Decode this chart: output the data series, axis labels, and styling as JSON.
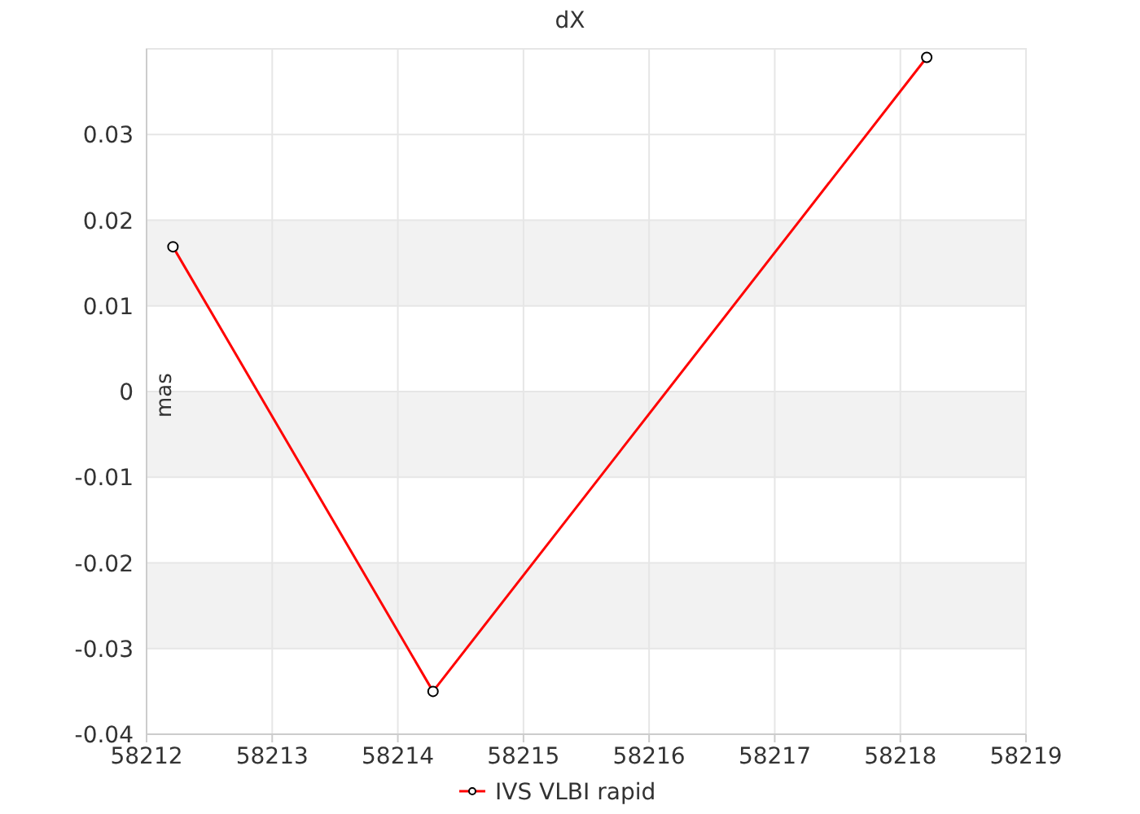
{
  "chart_data": {
    "type": "line",
    "title": "dX",
    "ylabel": "mas",
    "x": [
      58212.21,
      58214.28,
      58218.21
    ],
    "series": [
      {
        "name": "IVS VLBI rapid",
        "color": "#ff0000",
        "values": [
          0.0169,
          -0.035,
          0.039
        ]
      }
    ],
    "xlim": [
      58212,
      58219
    ],
    "xticks": [
      58212,
      58213,
      58214,
      58215,
      58216,
      58217,
      58218,
      58219
    ],
    "ylim": [
      -0.04,
      0.04
    ],
    "yticks": [
      -0.04,
      -0.03,
      -0.02,
      -0.01,
      0,
      0.01,
      0.02,
      0.03
    ],
    "bands": [
      {
        "axis": "y",
        "from": 0.01,
        "to": 0.02,
        "color": "#f2f2f2"
      },
      {
        "axis": "y",
        "from": -0.01,
        "to": 0,
        "color": "#f2f2f2"
      },
      {
        "axis": "y",
        "from": -0.03,
        "to": -0.02,
        "color": "#f2f2f2"
      }
    ],
    "grid": true,
    "legend": "bottom",
    "marker": "circle",
    "line_style": "solid"
  }
}
